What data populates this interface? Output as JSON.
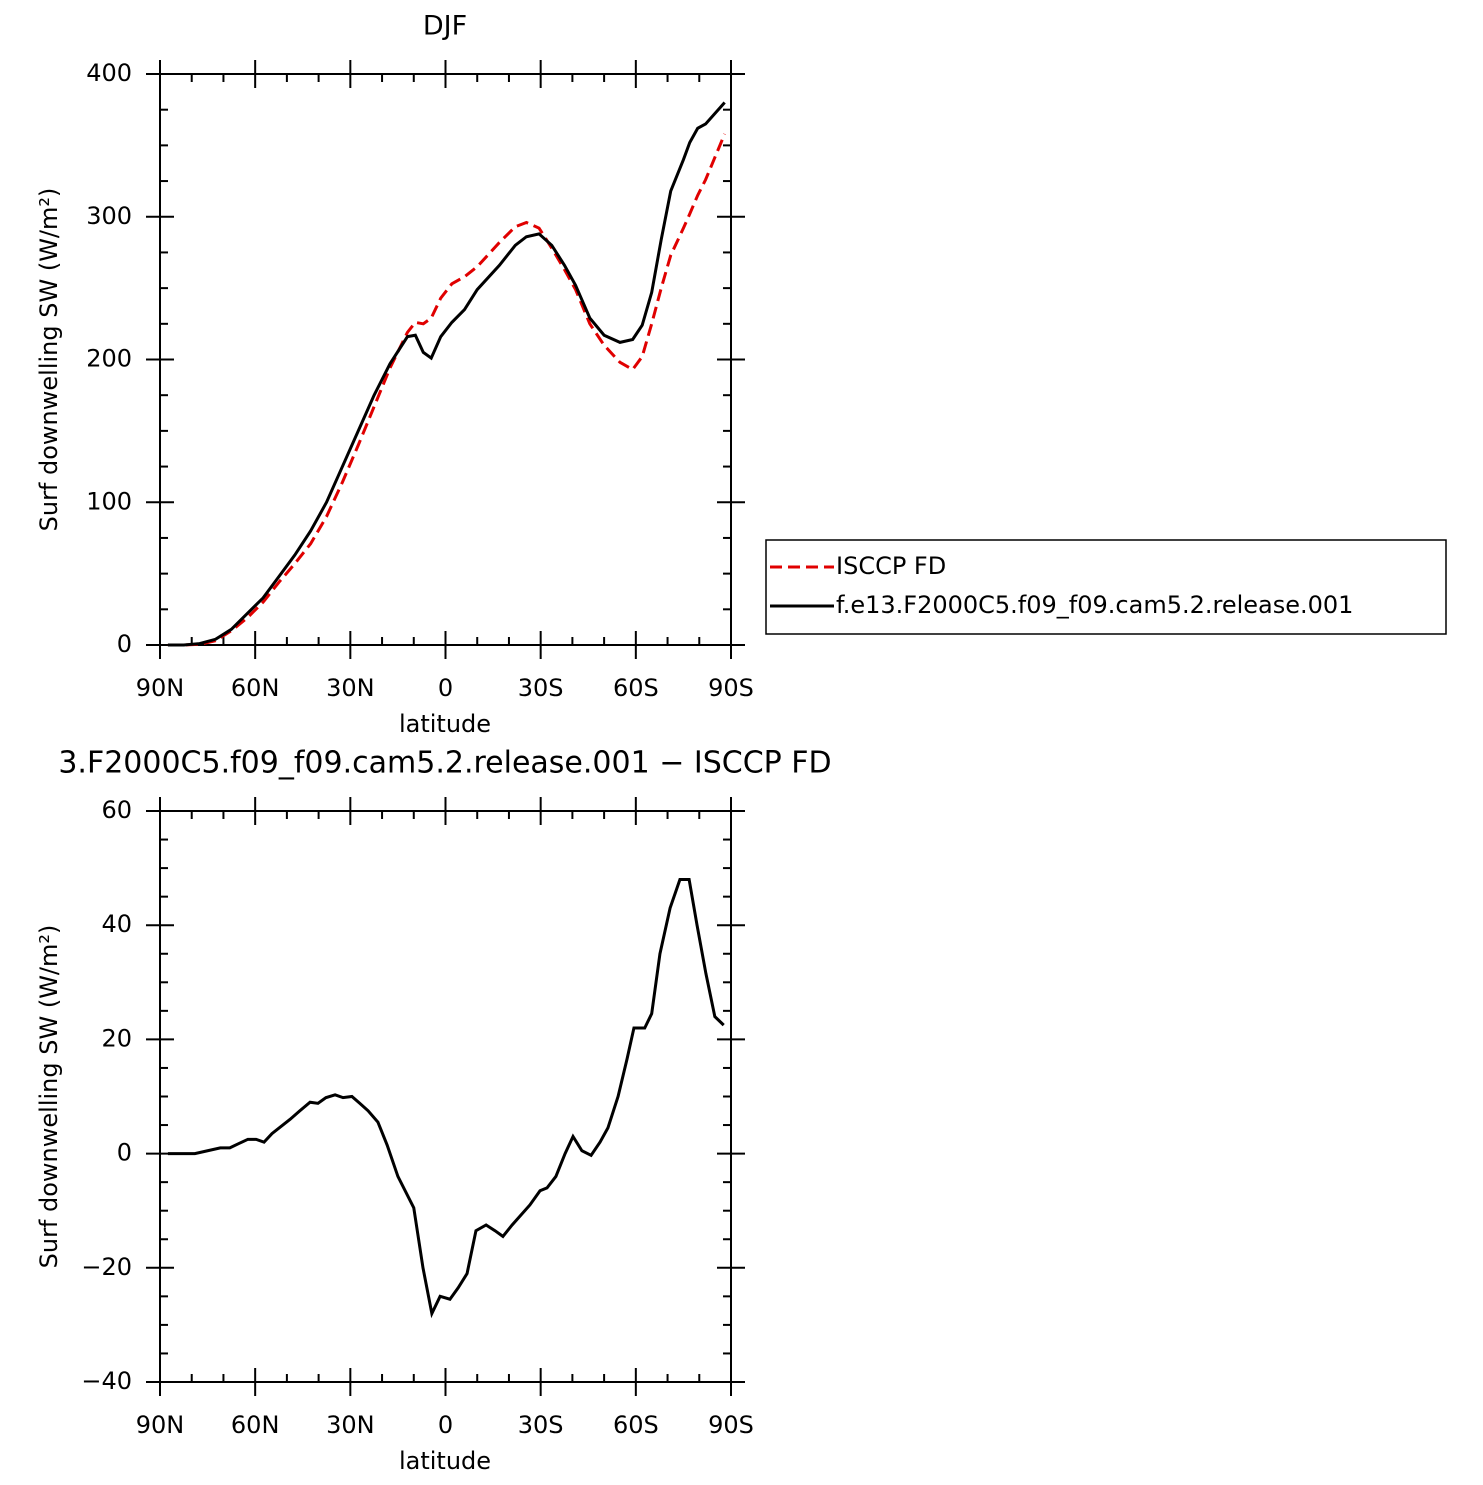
{
  "chart_data": [
    {
      "type": "line",
      "title": "DJF",
      "x_label": "latitude",
      "y_label": "Surf downwelling SW (W/m²)",
      "x": [
        87.5,
        82.5,
        77.5,
        72.5,
        67.5,
        62.5,
        57.5,
        52.5,
        47.5,
        42.5,
        37.5,
        32.5,
        27.5,
        22.5,
        17.5,
        12,
        9.5,
        7,
        4.5,
        1.5,
        -2,
        -6,
        -10,
        -17,
        -22,
        -25.5,
        -29.5,
        -33.5,
        -37.5,
        -41,
        -45.5,
        -50,
        -55,
        -59,
        -62,
        -65,
        -68,
        -71,
        -75,
        -77,
        -79.5,
        -82,
        -88
      ],
      "series": [
        {
          "name": "ISCCP FD",
          "color": "#e00000",
          "linestyle": "dashed",
          "values": [
            0,
            0,
            0.5,
            3,
            10,
            19,
            30,
            44,
            57,
            71,
            90,
            114,
            140,
            167,
            194,
            219,
            226,
            225,
            229,
            243,
            253,
            258,
            265,
            282,
            293,
            296,
            292,
            278,
            263,
            249,
            225,
            210,
            198,
            193,
            202,
            225,
            250,
            273,
            292,
            302,
            315,
            326,
            358
          ]
        },
        {
          "name": "f.e13.F2000C5.f09_f09.cam5.2.release.001",
          "color": "#000000",
          "linestyle": "solid",
          "values": [
            0,
            0,
            1,
            4,
            11,
            22,
            33,
            48,
            63,
            80,
            100,
            125,
            150,
            175,
            197,
            216,
            217,
            205,
            201,
            216,
            226,
            235,
            249,
            266,
            280,
            286,
            288,
            280,
            266,
            252,
            229,
            217,
            212,
            214,
            224,
            247,
            284,
            318,
            340,
            352,
            362,
            365,
            380
          ]
        }
      ],
      "xlim": [
        90,
        -90
      ],
      "xticks": [
        {
          "value": 90,
          "label": "90N"
        },
        {
          "value": 60,
          "label": "60N"
        },
        {
          "value": 30,
          "label": "30N"
        },
        0,
        {
          "value": -30,
          "label": "30S"
        },
        {
          "value": -60,
          "label": "60S"
        },
        {
          "value": -90,
          "label": "90S"
        }
      ],
      "ylim": [
        0,
        400
      ],
      "yticks": [
        0,
        100,
        200,
        300,
        400
      ],
      "legend": "right"
    },
    {
      "type": "line",
      "title": "3.F2000C5.f09_f09.cam5.2.release.001 − ISCCP FD",
      "x_label": "latitude",
      "y_label": "Surf downwelling SW (W/m²)",
      "x": [
        87.5,
        79,
        75,
        71,
        68,
        65,
        62.3,
        59.7,
        57.2,
        54.7,
        49,
        45.9,
        42.7,
        40.2,
        37.7,
        34.8,
        32.3,
        29.5,
        27,
        24.4,
        21.3,
        18.4,
        15,
        10,
        7.1,
        4.3,
        1.7,
        -1.4,
        -4,
        -6.8,
        -9.6,
        -12.8,
        -15.6,
        -18.1,
        -21,
        -26.6,
        -29.8,
        -32,
        -34.8,
        -37.7,
        -40.2,
        -43,
        -45.9,
        -48.7,
        -51.2,
        -54.4,
        -57.2,
        -59.4,
        -62.8,
        -65,
        -67.6,
        -70.8,
        -73.9,
        -76.8,
        -79.3,
        -82.1,
        -84.9,
        -87.7
      ],
      "series": [
        {
          "color": "#000000",
          "linestyle": "solid",
          "values": [
            0,
            0,
            0.5,
            1,
            1,
            1.8,
            2.5,
            2.5,
            2,
            3.5,
            6,
            7.5,
            9,
            8.8,
            9.8,
            10.3,
            9.8,
            10,
            8.8,
            7.5,
            5.5,
            1.5,
            -4,
            -9.5,
            -20,
            -28,
            -25,
            -25.5,
            -23.5,
            -21,
            -13.5,
            -12.5,
            -13.5,
            -14.5,
            -12.5,
            -9,
            -6.5,
            -6,
            -4,
            0,
            3,
            0.5,
            -0.3,
            2,
            4.5,
            10,
            16.5,
            22,
            22,
            24.5,
            35,
            43,
            48,
            48,
            40,
            31.5,
            24,
            22.5
          ]
        }
      ],
      "xlim": [
        90,
        -90
      ],
      "xticks": [
        {
          "value": 90,
          "label": "90N"
        },
        {
          "value": 60,
          "label": "60N"
        },
        {
          "value": 30,
          "label": "30N"
        },
        0,
        {
          "value": -30,
          "label": "30S"
        },
        {
          "value": -60,
          "label": "60S"
        },
        {
          "value": -90,
          "label": "90S"
        }
      ],
      "ylim": [
        -40,
        60
      ],
      "yticks": [
        {
          "value": -40,
          "label": "−40"
        },
        {
          "value": -20,
          "label": "−20"
        },
        0,
        20,
        40,
        60
      ]
    }
  ]
}
